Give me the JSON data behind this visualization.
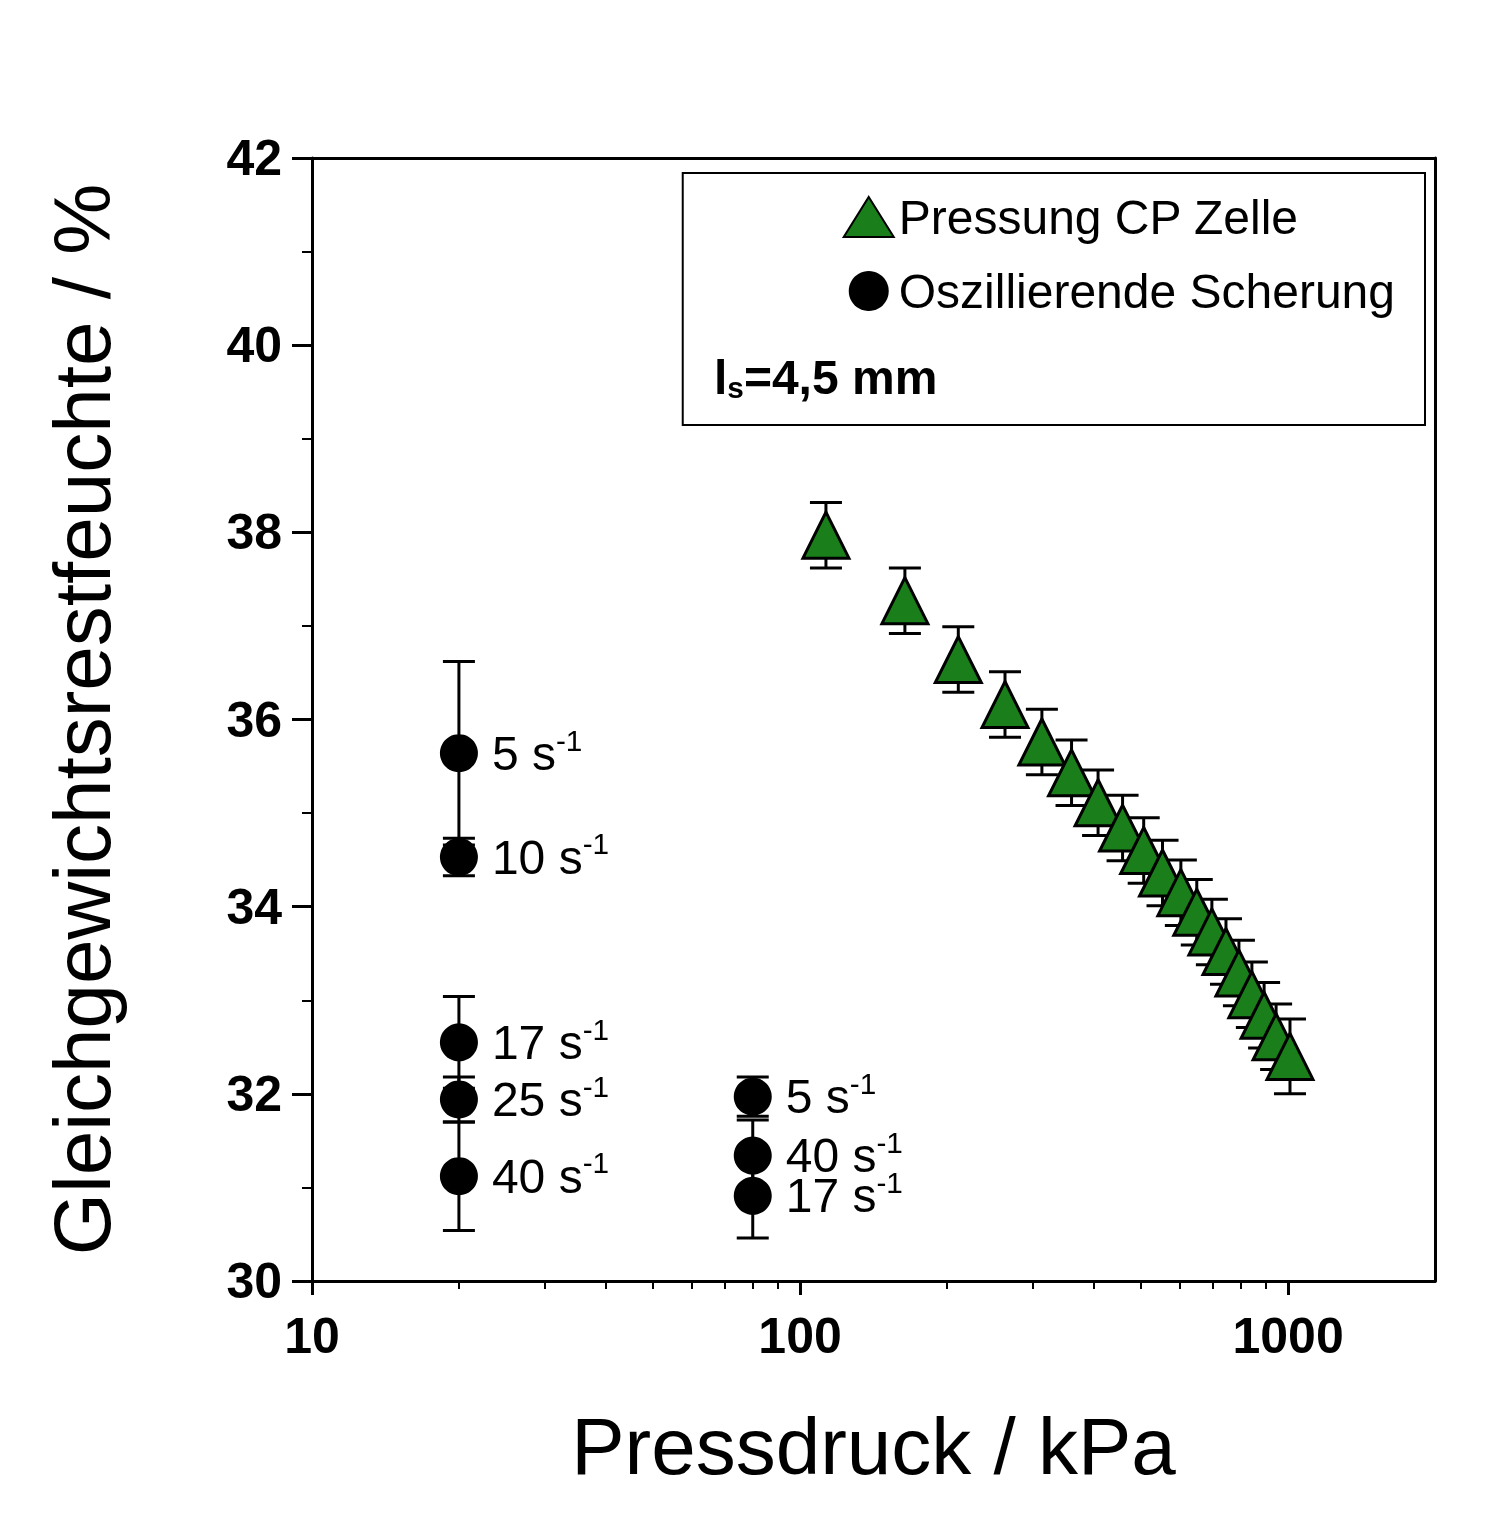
{
  "chart_data": {
    "type": "scatter",
    "xlabel": "Pressdruck / kPa",
    "ylabel": "Gleichgewichtsrestfeuchte / %",
    "log": "x",
    "xlim": [
      10,
      2000
    ],
    "xticks": [
      10,
      100,
      1000
    ],
    "ylim": [
      30,
      42
    ],
    "yticks": [
      30,
      32,
      34,
      36,
      38,
      40,
      42
    ],
    "grid": false,
    "legend": "top right",
    "series": [
      {
        "name": "Pressung CP Zelle",
        "marker": "triangle",
        "color": "#1a7f1a",
        "x": [
          113,
          164,
          211,
          263,
          313,
          360,
          408,
          458,
          506,
          553,
          603,
          650,
          698,
          746,
          793,
          843,
          893,
          945,
          1009
        ],
        "values": [
          37.97,
          37.27,
          36.64,
          36.16,
          35.76,
          35.43,
          35.11,
          34.84,
          34.6,
          34.36,
          34.15,
          33.94,
          33.73,
          33.52,
          33.29,
          33.06,
          32.84,
          32.61,
          32.4
        ],
        "errors": [
          0.35,
          0.35,
          0.35,
          0.35,
          0.35,
          0.35,
          0.35,
          0.35,
          0.35,
          0.35,
          0.35,
          0.35,
          0.35,
          0.35,
          0.35,
          0.35,
          0.35,
          0.35,
          0.4
        ]
      },
      {
        "name": "Oszillierende Scherung",
        "marker": "circle",
        "color": "#000000",
        "x": [
          20,
          20,
          20,
          20,
          20,
          80,
          80,
          80
        ],
        "values": [
          35.64,
          34.53,
          32.55,
          31.94,
          31.12,
          31.97,
          31.34,
          30.91
        ],
        "value_labels": [
          "5 s$^{-1}$",
          "10 s$^{-1}$",
          "17 s$^{-1}$",
          "25 s$^{-1}$",
          "40 s$^{-1}$",
          "5 s$^{-1}$",
          "40 s$^{-1}$",
          "17 s$^{-1}$"
        ],
        "errors": [
          0.98,
          0.2,
          0.49,
          0.24,
          0.58,
          0.21,
          0.38,
          0.45
        ]
      }
    ],
    "annotations": [
      "l$_{s}$=4,5 mm"
    ]
  }
}
